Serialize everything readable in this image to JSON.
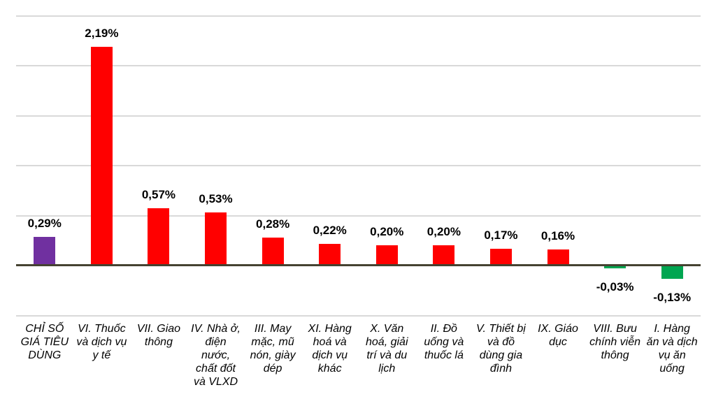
{
  "chart_data": {
    "type": "bar",
    "title": "",
    "xlabel": "",
    "ylabel": "",
    "categories": [
      "CHỈ SỐ GIÁ TIÊU DÙNG",
      "VI. Thuốc và dịch vụ y tế",
      "VII. Giao thông",
      "IV. Nhà ở, điện nước, chất đốt và VLXD",
      "III. May mặc, mũ nón, giày dép",
      "XI. Hàng hoá và dịch vụ khác",
      "X. Văn hoá, giải trí và du lịch",
      "II. Đồ uống và thuốc lá",
      "V. Thiết bị và đồ dùng gia đình",
      "IX. Giáo dục",
      "VIII. Bưu chính viễn thông",
      "I. Hàng ăn và dịch vụ ăn uống"
    ],
    "values": [
      0.29,
      2.19,
      0.57,
      0.53,
      0.28,
      0.22,
      0.2,
      0.2,
      0.17,
      0.16,
      -0.03,
      -0.13
    ],
    "value_labels": [
      "0,29%",
      "2,19%",
      "0,57%",
      "0,53%",
      "0,28%",
      "0,22%",
      "0,20%",
      "0,20%",
      "0,17%",
      "0,16%",
      "-0,03%",
      "-0,13%"
    ],
    "bar_colors": [
      "#7030A0",
      "#FF0000",
      "#FF0000",
      "#FF0000",
      "#FF0000",
      "#FF0000",
      "#FF0000",
      "#FF0000",
      "#FF0000",
      "#FF0000",
      "#00A651",
      "#00A651"
    ],
    "ylim": [
      -0.5,
      2.5
    ],
    "gridline_values": [
      2.5,
      2.0,
      1.5,
      1.0,
      0.5,
      -0.5
    ],
    "grid": true,
    "legend": "none",
    "y_axis_tick_labels_visible": false,
    "colors": {
      "cpi_total": "#7030A0",
      "increase": "#FF0000",
      "decrease": "#00A651",
      "gridline": "#D9D9D9",
      "axis_line": "#454231",
      "label_text": "#000000"
    }
  }
}
